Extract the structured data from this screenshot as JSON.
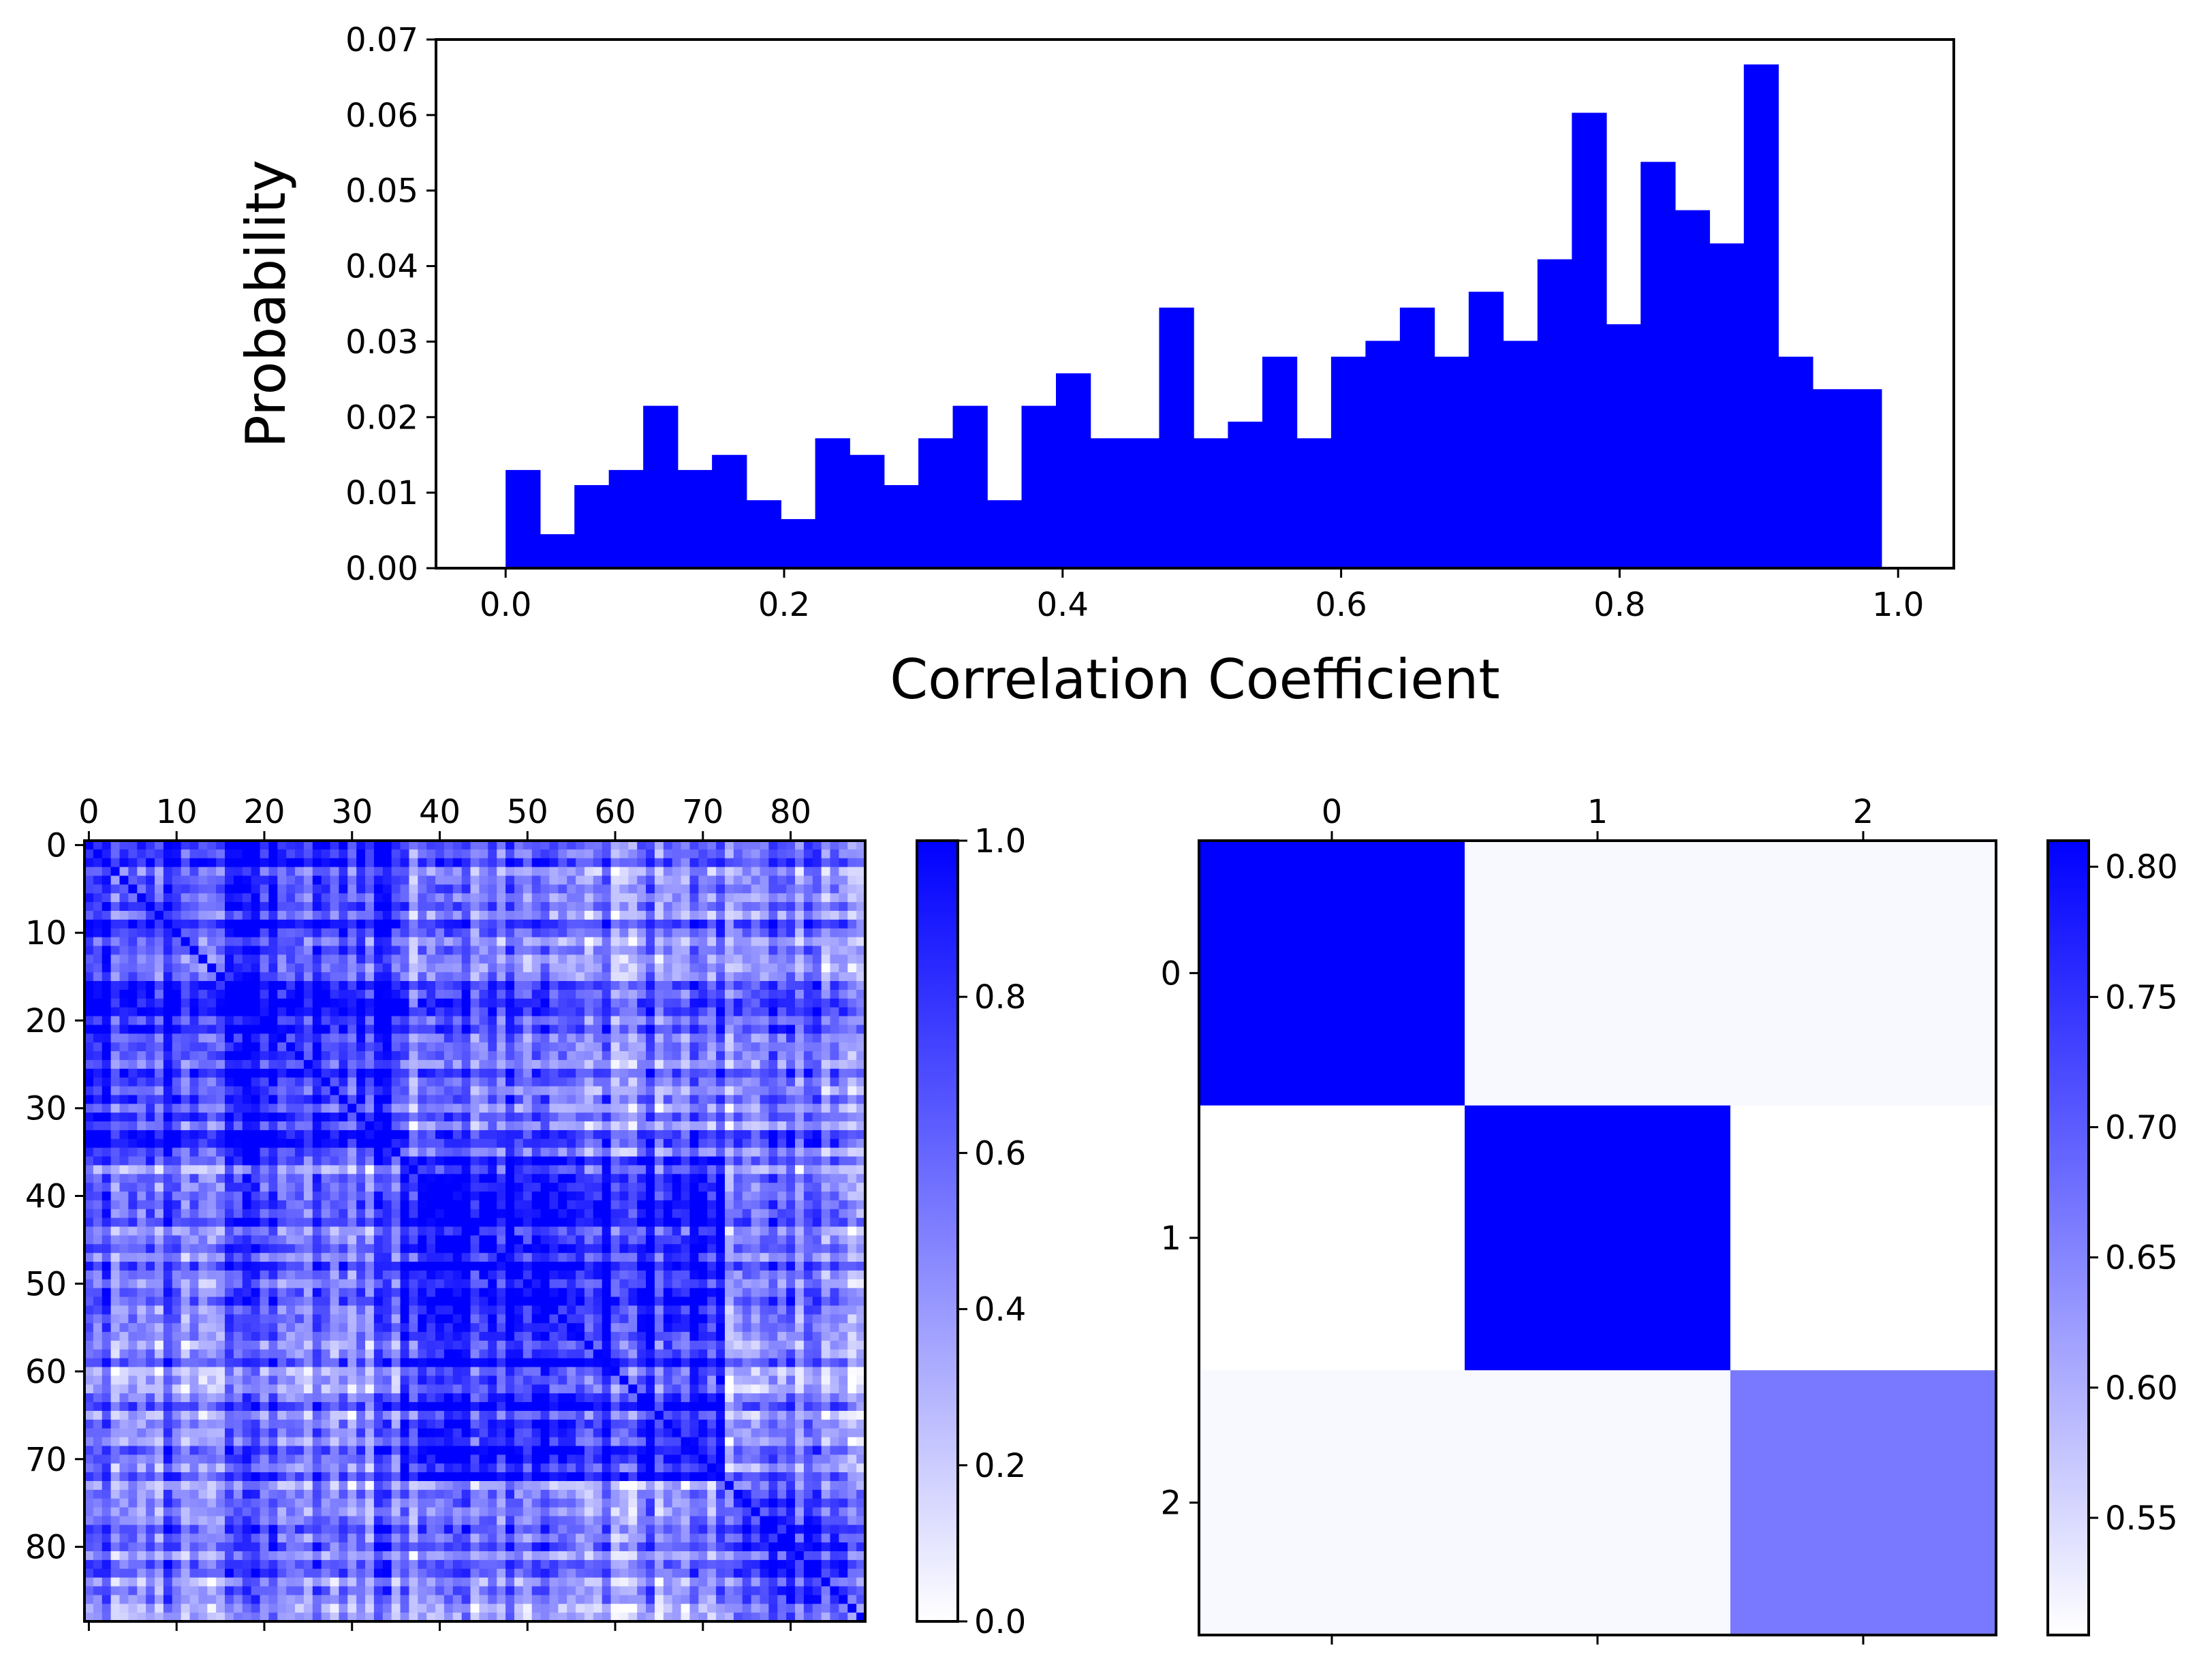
{
  "colors": {
    "bar": "#0000ff",
    "cmap_low": "#ffffff",
    "cmap_high": "#0000ff",
    "axis": "#000000",
    "background": "#ffffff"
  },
  "chart_data": [
    {
      "type": "bar",
      "title": "",
      "xlabel": "Correlation Coefficient",
      "ylabel": "Probability",
      "xlim": [
        -0.05,
        1.04
      ],
      "ylim": [
        0.0,
        0.07
      ],
      "xticks": [
        0.0,
        0.2,
        0.4,
        0.6,
        0.8,
        1.0
      ],
      "xtick_labels": [
        "0.0",
        "0.2",
        "0.4",
        "0.6",
        "0.8",
        "1.0"
      ],
      "yticks": [
        0.0,
        0.01,
        0.02,
        0.03,
        0.04,
        0.05,
        0.06,
        0.07
      ],
      "ytick_labels": [
        "0.00",
        "0.01",
        "0.02",
        "0.03",
        "0.04",
        "0.05",
        "0.06",
        "0.07"
      ],
      "bin_start": 0.0,
      "bin_width": 0.0247,
      "values": [
        0.013,
        0.0045,
        0.011,
        0.013,
        0.0215,
        0.013,
        0.015,
        0.009,
        0.0065,
        0.0172,
        0.015,
        0.011,
        0.0172,
        0.0215,
        0.009,
        0.0215,
        0.0258,
        0.0172,
        0.0172,
        0.0345,
        0.0172,
        0.0194,
        0.028,
        0.0172,
        0.028,
        0.0301,
        0.0345,
        0.028,
        0.0366,
        0.0301,
        0.0409,
        0.0603,
        0.0323,
        0.0538,
        0.0474,
        0.043,
        0.0667,
        0.028,
        0.0237,
        0.0237
      ]
    },
    {
      "type": "heatmap",
      "title": "",
      "size": 89,
      "vmin": 0.0,
      "vmax": 1.0,
      "blocks": [
        [
          0,
          36
        ],
        [
          36,
          73
        ],
        [
          73,
          89
        ]
      ],
      "block_means": [
        [
          0.8,
          0.55,
          0.5
        ],
        [
          0.55,
          0.85,
          0.45
        ],
        [
          0.5,
          0.45,
          0.65
        ]
      ],
      "xticks": [
        0,
        10,
        20,
        30,
        40,
        50,
        60,
        70,
        80
      ],
      "yticks": [
        0,
        10,
        20,
        30,
        40,
        50,
        60,
        70,
        80
      ],
      "colorbar_ticks": [
        0.0,
        0.2,
        0.4,
        0.6,
        0.8,
        1.0
      ],
      "colorbar_tick_labels": [
        "0.0",
        "0.2",
        "0.4",
        "0.6",
        "0.8",
        "1.0"
      ]
    },
    {
      "type": "heatmap",
      "title": "",
      "size": 3,
      "vmin": 0.505,
      "vmax": 0.81,
      "values": [
        [
          0.81,
          0.513,
          0.513
        ],
        [
          0.505,
          0.81,
          0.505
        ],
        [
          0.513,
          0.513,
          0.665
        ]
      ],
      "xticks": [
        0,
        1,
        2
      ],
      "yticks": [
        0,
        1,
        2
      ],
      "colorbar_ticks": [
        0.55,
        0.6,
        0.65,
        0.7,
        0.75,
        0.8
      ],
      "colorbar_tick_labels": [
        "0.55",
        "0.60",
        "0.65",
        "0.70",
        "0.75",
        "0.80"
      ]
    }
  ]
}
